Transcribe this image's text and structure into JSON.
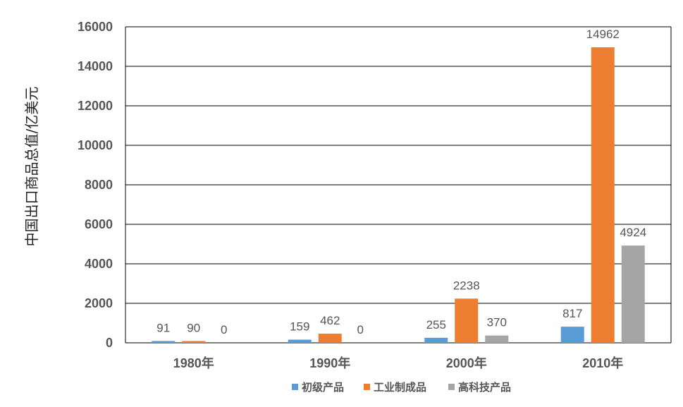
{
  "chart_data": {
    "type": "bar",
    "title": "",
    "ylabel": "中国出口商品总值/亿美元",
    "xlabel": "",
    "categories": [
      "1980年",
      "1990年",
      "2000年",
      "2010年"
    ],
    "ylim": [
      0,
      16000
    ],
    "yticks": [
      0,
      2000,
      4000,
      6000,
      8000,
      10000,
      12000,
      14000,
      16000
    ],
    "grid": true,
    "legend_position": "bottom",
    "series": [
      {
        "name": "初级产品",
        "color": "#5b9bd5",
        "values": [
          91,
          159,
          255,
          817
        ]
      },
      {
        "name": "工业制成品",
        "color": "#ed7d31",
        "values": [
          90,
          462,
          2238,
          14962
        ]
      },
      {
        "name": "高科技产品",
        "color": "#a5a5a5",
        "values": [
          0,
          0,
          370,
          4924
        ]
      }
    ]
  }
}
